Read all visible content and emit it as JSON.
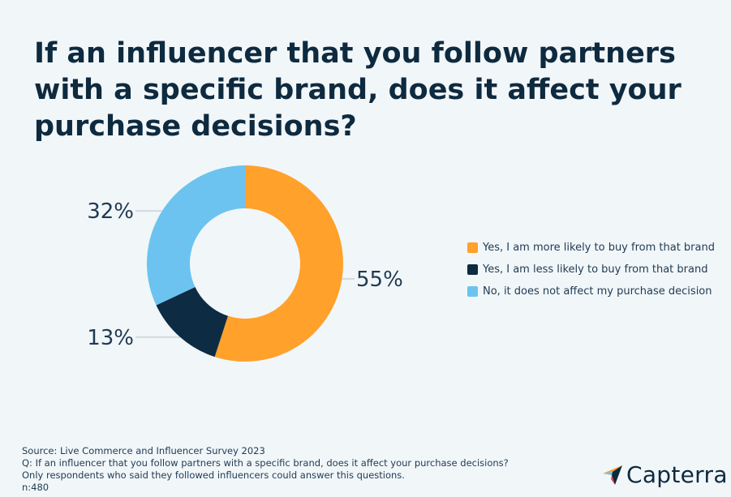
{
  "chart_data": {
    "type": "pie",
    "variant": "donut",
    "title": "If an influencer that you follow partners with a specific brand, does it affect your purchase decisions?",
    "categories": [
      "Yes, I am more likely to buy from that brand",
      "Yes, I am less likely to buy from that brand",
      "No, it does not affect my purchase decision"
    ],
    "values": [
      55,
      13,
      32
    ],
    "value_labels": [
      "55%",
      "13%",
      "32%"
    ],
    "colors": [
      "#ffa12b",
      "#0d2b42",
      "#6cc3ef"
    ],
    "legend_position": "right"
  },
  "footer": {
    "source": "Source:  Live Commerce and Influencer Survey 2023",
    "question": "Q: If an influencer that you follow partners with a specific brand, does it affect your purchase decisions?",
    "note": "Only respondents who said they followed influencers could answer this questions.",
    "n": "n:480"
  },
  "brand": {
    "name": "Capterra",
    "logo_icon": "capterra-arrow-icon"
  }
}
